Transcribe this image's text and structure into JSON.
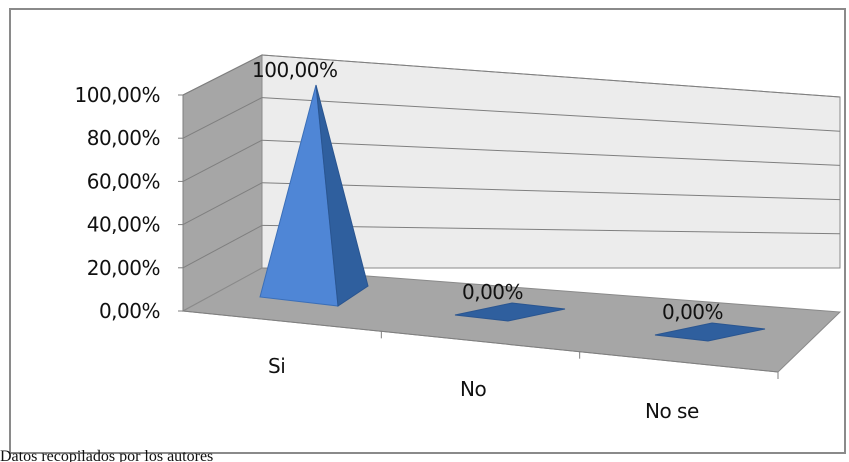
{
  "chart_data": {
    "type": "bar",
    "shape": "pyramid-3d",
    "categories": [
      "Si",
      "No",
      "No se"
    ],
    "values": [
      100,
      0,
      0
    ],
    "data_labels": [
      "100,00%",
      "0,00%",
      "0,00%"
    ],
    "y_ticks": [
      "0,00%",
      "20,00%",
      "40,00%",
      "60,00%",
      "80,00%",
      "100,00%"
    ],
    "ylim": [
      0,
      100
    ],
    "grid": true,
    "legend": "none",
    "colors": {
      "pyramid_light": "#4f86d6",
      "pyramid_dark": "#2f5f9e",
      "back_wall": "#ececec",
      "side_wall": "#a6a6a6",
      "floor": "#a6a6a6",
      "gridline": "#7f7f7f"
    }
  },
  "caption": "Datos recopilados por los autores"
}
